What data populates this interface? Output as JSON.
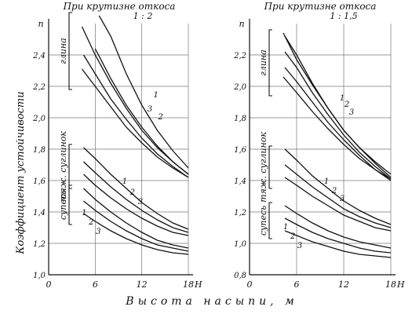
{
  "figure": {
    "y_axis_label": "Коэффициент устойчивости",
    "x_axis_label": "Высота насыпи, м"
  },
  "chart_data": [
    {
      "type": "line",
      "title": "При крутизне откоса",
      "subtitle": "1 : 2",
      "ylabel_top": "n",
      "xlabel_end": "H",
      "xlim": [
        0,
        18
      ],
      "ylim": [
        1.0,
        2.6
      ],
      "x_ticks": [
        0,
        6,
        12,
        18
      ],
      "y_ticks": [
        1.0,
        1.2,
        1.4,
        1.6,
        1.8,
        2.0,
        2.2,
        2.4
      ],
      "grid": true,
      "groups": [
        {
          "label": "глина",
          "series": [
            {
              "name": "",
              "x": [
                4.3,
                6,
                8,
                10,
                12,
                14,
                16,
                18
              ],
              "y": [
                2.58,
                2.4,
                2.22,
                2.06,
                1.92,
                1.81,
                1.72,
                1.64
              ]
            },
            {
              "name": "",
              "x": [
                4.3,
                6,
                8,
                10,
                12,
                14,
                16,
                18
              ],
              "y": [
                2.31,
                2.2,
                2.07,
                1.94,
                1.84,
                1.75,
                1.68,
                1.62
              ]
            },
            {
              "name": "1",
              "x": [
                6.5,
                8,
                10,
                12,
                14,
                16,
                18
              ],
              "y": [
                2.76,
                2.52,
                2.28,
                2.08,
                1.92,
                1.79,
                1.68
              ]
            },
            {
              "name": "2",
              "x": [
                6,
                8,
                10,
                12,
                14,
                16,
                18
              ],
              "y": [
                2.44,
                2.25,
                2.08,
                1.94,
                1.82,
                1.72,
                1.64
              ]
            },
            {
              "name": "3",
              "x": [
                4.5,
                6,
                8,
                10,
                12,
                14,
                16,
                18
              ],
              "y": [
                2.4,
                2.28,
                2.12,
                1.99,
                1.87,
                1.77,
                1.69,
                1.62
              ]
            }
          ]
        },
        {
          "label": "тяж. суглинок",
          "series": [
            {
              "name": "1",
              "x": [
                4.5,
                6,
                8,
                10,
                12,
                14,
                16,
                18
              ],
              "y": [
                1.81,
                1.74,
                1.64,
                1.55,
                1.46,
                1.39,
                1.33,
                1.29
              ]
            },
            {
              "name": "2",
              "x": [
                4.5,
                6,
                8,
                10,
                12,
                14,
                16,
                18
              ],
              "y": [
                1.72,
                1.65,
                1.56,
                1.48,
                1.41,
                1.35,
                1.3,
                1.27
              ]
            },
            {
              "name": "3",
              "x": [
                4.5,
                6,
                8,
                10,
                12,
                14,
                16,
                18
              ],
              "y": [
                1.64,
                1.57,
                1.49,
                1.42,
                1.36,
                1.31,
                1.27,
                1.25
              ]
            }
          ]
        },
        {
          "label": "супесь",
          "series": [
            {
              "name": "1",
              "x": [
                4.5,
                6,
                8,
                10,
                12,
                14,
                16,
                18
              ],
              "y": [
                1.55,
                1.48,
                1.4,
                1.33,
                1.27,
                1.22,
                1.19,
                1.17
              ]
            },
            {
              "name": "2",
              "x": [
                4.5,
                6,
                8,
                10,
                12,
                14,
                16,
                18
              ],
              "y": [
                1.47,
                1.41,
                1.34,
                1.28,
                1.23,
                1.19,
                1.17,
                1.15
              ]
            },
            {
              "name": "3",
              "x": [
                4.5,
                6,
                8,
                10,
                12,
                14,
                16,
                18
              ],
              "y": [
                1.39,
                1.34,
                1.28,
                1.23,
                1.19,
                1.16,
                1.14,
                1.13
              ]
            }
          ]
        }
      ]
    },
    {
      "type": "line",
      "title": "При крутизне откоса",
      "subtitle": "1 : 1,5",
      "ylabel_top": "n",
      "xlabel_end": "H",
      "xlim": [
        0,
        18
      ],
      "ylim": [
        0.8,
        2.4
      ],
      "x_ticks": [
        0,
        6,
        12,
        18
      ],
      "y_ticks": [
        0.8,
        1.0,
        1.2,
        1.4,
        1.6,
        1.8,
        2.0,
        2.2
      ],
      "grid": true,
      "groups": [
        {
          "label": "глина",
          "series": [
            {
              "name": "",
              "x": [
                4.3,
                6,
                8,
                10,
                12,
                14,
                16,
                18
              ],
              "y": [
                2.34,
                2.17,
                2.01,
                1.86,
                1.72,
                1.61,
                1.52,
                1.44
              ]
            },
            {
              "name": "",
              "x": [
                4.3,
                6,
                8,
                10,
                12,
                14,
                16,
                18
              ],
              "y": [
                2.06,
                1.96,
                1.84,
                1.73,
                1.63,
                1.54,
                1.47,
                1.41
              ]
            },
            {
              "name": "1",
              "x": [
                4.5,
                6,
                8,
                10,
                12,
                14,
                16,
                18
              ],
              "y": [
                2.32,
                2.2,
                2.02,
                1.86,
                1.72,
                1.61,
                1.51,
                1.42
              ]
            },
            {
              "name": "2",
              "x": [
                4.5,
                6,
                8,
                10,
                12,
                14,
                16,
                18
              ],
              "y": [
                2.22,
                2.12,
                1.96,
                1.82,
                1.69,
                1.58,
                1.49,
                1.41
              ]
            },
            {
              "name": "3",
              "x": [
                4.5,
                6,
                8,
                10,
                12,
                14,
                16,
                18
              ],
              "y": [
                2.12,
                2.03,
                1.9,
                1.77,
                1.66,
                1.56,
                1.47,
                1.4
              ]
            }
          ]
        },
        {
          "label": "тяж. суглинок",
          "series": [
            {
              "name": "1",
              "x": [
                4.5,
                6,
                8,
                10,
                12,
                14,
                16,
                18
              ],
              "y": [
                1.6,
                1.53,
                1.43,
                1.35,
                1.27,
                1.21,
                1.16,
                1.12
              ]
            },
            {
              "name": "2",
              "x": [
                4.5,
                6,
                8,
                10,
                12,
                14,
                16,
                18
              ],
              "y": [
                1.5,
                1.44,
                1.36,
                1.29,
                1.22,
                1.17,
                1.13,
                1.1
              ]
            },
            {
              "name": "3",
              "x": [
                4.5,
                6,
                8,
                10,
                12,
                14,
                16,
                18
              ],
              "y": [
                1.42,
                1.37,
                1.3,
                1.24,
                1.18,
                1.14,
                1.1,
                1.08
              ]
            }
          ]
        },
        {
          "label": "супесь",
          "series": [
            {
              "name": "1",
              "x": [
                4.5,
                6,
                8,
                10,
                12,
                14,
                16,
                18
              ],
              "y": [
                1.24,
                1.19,
                1.13,
                1.08,
                1.04,
                1.01,
                0.99,
                0.97
              ]
            },
            {
              "name": "2",
              "x": [
                4.5,
                6,
                8,
                10,
                12,
                14,
                16,
                18
              ],
              "y": [
                1.16,
                1.12,
                1.07,
                1.03,
                1.0,
                0.97,
                0.95,
                0.94
              ]
            },
            {
              "name": "3",
              "x": [
                4.5,
                6,
                8,
                10,
                12,
                14,
                16,
                18
              ],
              "y": [
                1.08,
                1.05,
                1.01,
                0.98,
                0.95,
                0.93,
                0.92,
                0.91
              ]
            }
          ]
        }
      ]
    }
  ]
}
